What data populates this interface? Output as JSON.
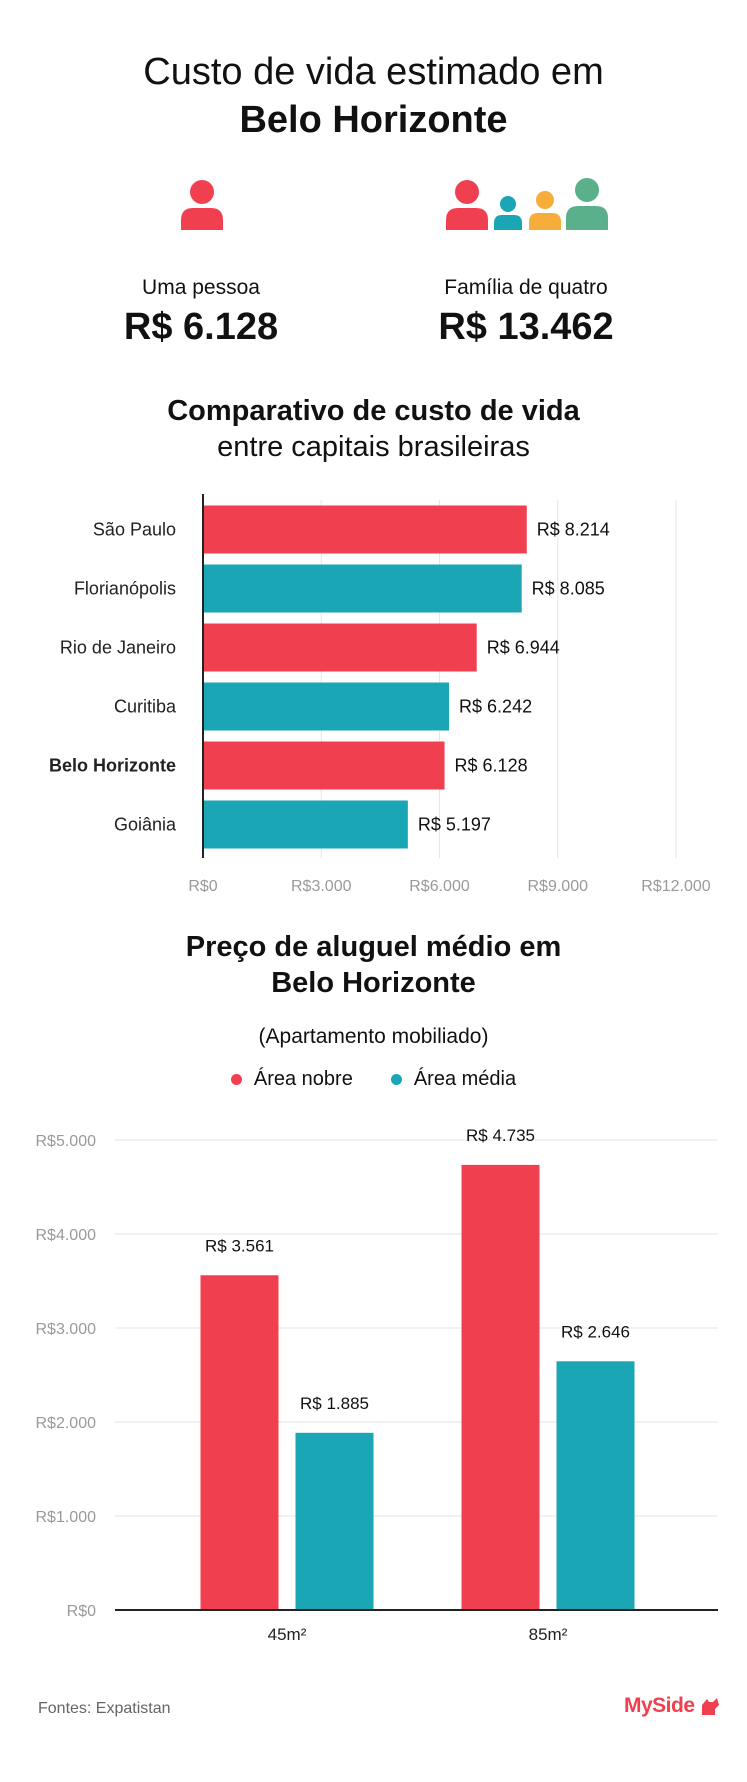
{
  "header": {
    "title_line1": "Custo de vida estimado em",
    "title_line2": "Belo Horizonte"
  },
  "summary": {
    "single": {
      "label": "Uma pessoa",
      "value": "R$ 6.128",
      "icon": "person-icon"
    },
    "family": {
      "label": "Família de quatro",
      "value": "R$ 13.462",
      "icon": "family-icon"
    }
  },
  "colors": {
    "red": "#f0404f",
    "teal": "#1ba6b5",
    "yellow": "#f6ad3c",
    "green": "#5ab08a"
  },
  "chart_data": [
    {
      "type": "bar",
      "orientation": "horizontal",
      "title_line1": "Comparativo de custo de vida",
      "title_line2": "entre capitais brasileiras",
      "categories": [
        "São Paulo",
        "Florianópolis",
        "Rio de Janeiro",
        "Curitiba",
        "Belo Horizonte",
        "Goiânia"
      ],
      "values": [
        8214,
        8085,
        6944,
        6242,
        6128,
        5197
      ],
      "value_labels": [
        "R$ 8.214",
        "R$ 8.085",
        "R$ 6.944",
        "R$ 6.242",
        "R$ 6.128",
        "R$ 5.197"
      ],
      "highlight": "Belo Horizonte",
      "bar_colors": [
        "#f0404f",
        "#1ba6b5",
        "#f0404f",
        "#1ba6b5",
        "#f0404f",
        "#1ba6b5"
      ],
      "xlim": [
        0,
        12000
      ],
      "xticks": [
        0,
        3000,
        6000,
        9000,
        12000
      ],
      "xtick_labels": [
        "R$0",
        "R$3.000",
        "R$6.000",
        "R$9.000",
        "R$12.000"
      ],
      "grid": true
    },
    {
      "type": "bar",
      "orientation": "vertical",
      "title_line1": "Preço de aluguel médio em",
      "title_line2": "Belo Horizonte",
      "subtitle": "(Apartamento mobiliado)",
      "categories": [
        "45m²",
        "85m²"
      ],
      "series": [
        {
          "name": "Área nobre",
          "color": "#f0404f",
          "values": [
            3561,
            4735
          ],
          "value_labels": [
            "R$ 3.561",
            "R$ 4.735"
          ]
        },
        {
          "name": "Área média",
          "color": "#1ba6b5",
          "values": [
            1885,
            2646
          ],
          "value_labels": [
            "R$ 1.885",
            "R$ 2.646"
          ]
        }
      ],
      "ylim": [
        0,
        5000
      ],
      "yticks": [
        0,
        1000,
        2000,
        3000,
        4000,
        5000
      ],
      "ytick_labels": [
        "R$0",
        "R$1.000",
        "R$2.000",
        "R$3.000",
        "R$4.000",
        "R$5.000"
      ],
      "legend": "top-center",
      "grid": true
    }
  ],
  "footer": {
    "source": "Fontes: Expatistan",
    "brand": "MySide"
  }
}
